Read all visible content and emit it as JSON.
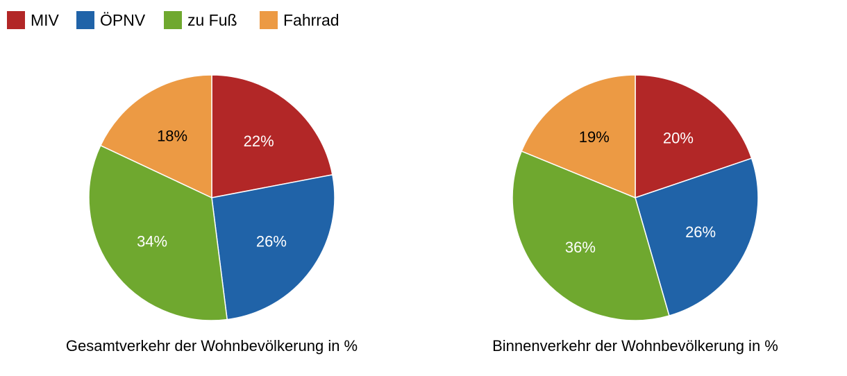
{
  "legend": [
    {
      "name": "MIV",
      "color": "#b22727"
    },
    {
      "name": "ÖPNV",
      "color": "#2063a8"
    },
    {
      "name": "zu Fuß",
      "color": "#6fa82f"
    },
    {
      "name": "Fahrrad",
      "color": "#ec9a44"
    }
  ],
  "chart_data": [
    {
      "type": "pie",
      "title": "Gesamtverkehr der Wohnbevölkerung in %",
      "categories": [
        "MIV",
        "ÖPNV",
        "zu Fuß",
        "Fahrrad"
      ],
      "values": [
        22,
        26,
        34,
        18
      ],
      "labels": [
        "22%",
        "26%",
        "34%",
        "18%"
      ],
      "colors": [
        "#b22727",
        "#2063a8",
        "#6fa82f",
        "#ec9a44"
      ],
      "label_colors": [
        "#ffffff",
        "#ffffff",
        "#ffffff",
        "#000000"
      ],
      "legend": "top-left"
    },
    {
      "type": "pie",
      "title": "Binnenverkehr der Wohnbevölkerung in %",
      "categories": [
        "MIV",
        "ÖPNV",
        "zu Fuß",
        "Fahrrad"
      ],
      "values": [
        20,
        26,
        36,
        19
      ],
      "labels": [
        "20%",
        "26%",
        "36%",
        "19%"
      ],
      "colors": [
        "#b22727",
        "#2063a8",
        "#6fa82f",
        "#ec9a44"
      ],
      "label_colors": [
        "#ffffff",
        "#ffffff",
        "#ffffff",
        "#000000"
      ],
      "legend": "top-left"
    }
  ]
}
